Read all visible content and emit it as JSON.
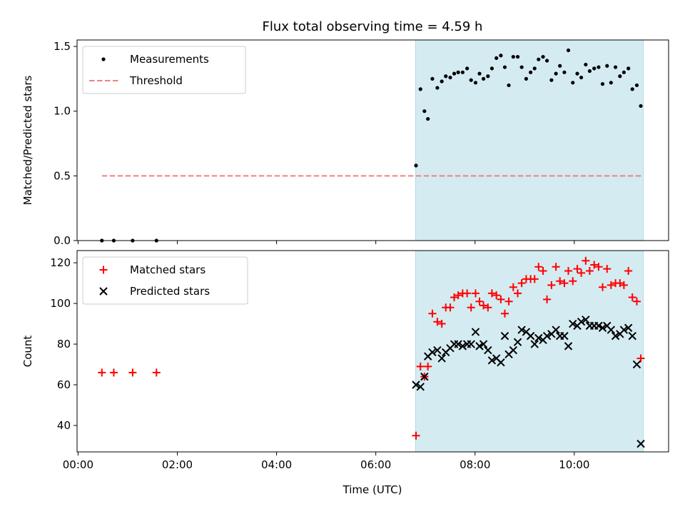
{
  "chart_data": {
    "type": "scatter",
    "title": "Flux total observing time = 4.59 h",
    "xlabel": "Time (UTC)",
    "x_tick_labels": [
      "00:00",
      "02:00",
      "04:00",
      "06:00",
      "08:00",
      "10:00"
    ],
    "x_ticks_hours": [
      0,
      2,
      4,
      6,
      8,
      10
    ],
    "xlim_hours": [
      -0.02,
      11.9
    ],
    "shaded_span_hours": [
      6.8,
      11.39
    ],
    "shade_color": "#d4ebf1",
    "panels": [
      {
        "ylabel": "Matched/Predicted stars",
        "ylim": [
          0,
          1.55
        ],
        "y_ticks": [
          0.0,
          0.5,
          1.0,
          1.5
        ],
        "y_tick_labels": [
          "0.0",
          "0.5",
          "1.0",
          "1.5"
        ],
        "legend_position": "upper-left",
        "series": [
          {
            "name": "Measurements",
            "marker": "dot",
            "color": "#000000",
            "x_hours": [
              0.48,
              0.72,
              1.1,
              1.58,
              6.81,
              6.9,
              6.98,
              7.05,
              7.14,
              7.24,
              7.33,
              7.41,
              7.5,
              7.58,
              7.66,
              7.75,
              7.84,
              7.92,
              8.01,
              8.09,
              8.17,
              8.26,
              8.34,
              8.43,
              8.52,
              8.6,
              8.68,
              8.77,
              8.86,
              8.94,
              9.03,
              9.12,
              9.2,
              9.28,
              9.37,
              9.45,
              9.54,
              9.63,
              9.71,
              9.8,
              9.88,
              9.97,
              10.06,
              10.14,
              10.23,
              10.31,
              10.4,
              10.49,
              10.57,
              10.66,
              10.74,
              10.83,
              10.92,
              11.0,
              11.09,
              11.17,
              11.26,
              11.34
            ],
            "y_values": [
              0.0,
              0.0,
              0.0,
              0.0,
              0.58,
              1.17,
              1.0,
              0.94,
              1.25,
              1.18,
              1.23,
              1.27,
              1.26,
              1.29,
              1.3,
              1.3,
              1.33,
              1.24,
              1.22,
              1.29,
              1.25,
              1.27,
              1.33,
              1.41,
              1.43,
              1.34,
              1.2,
              1.42,
              1.42,
              1.34,
              1.25,
              1.3,
              1.33,
              1.4,
              1.42,
              1.39,
              1.24,
              1.29,
              1.35,
              1.3,
              1.47,
              1.22,
              1.29,
              1.26,
              1.36,
              1.31,
              1.33,
              1.34,
              1.21,
              1.35,
              1.22,
              1.34,
              1.27,
              1.3,
              1.33,
              1.17,
              1.2,
              1.04
            ]
          },
          {
            "name": "Threshold",
            "marker": "dashed-line",
            "color": "#f08080",
            "x_hours": [
              0.48,
              11.39
            ],
            "y_values": [
              0.5,
              0.5
            ]
          }
        ]
      },
      {
        "ylabel": "Count",
        "ylim": [
          27,
          126
        ],
        "y_ticks": [
          40,
          60,
          80,
          100,
          120
        ],
        "y_tick_labels": [
          "40",
          "60",
          "80",
          "100",
          "120"
        ],
        "legend_position": "upper-left",
        "series": [
          {
            "name": "Matched stars",
            "marker": "plus",
            "color": "#ff0000",
            "x_hours": [
              0.48,
              0.72,
              1.1,
              1.58,
              6.81,
              6.9,
              6.98,
              7.05,
              7.14,
              7.24,
              7.33,
              7.41,
              7.5,
              7.58,
              7.66,
              7.75,
              7.84,
              7.92,
              8.01,
              8.09,
              8.17,
              8.26,
              8.34,
              8.43,
              8.52,
              8.6,
              8.68,
              8.77,
              8.86,
              8.94,
              9.03,
              9.12,
              9.2,
              9.28,
              9.37,
              9.45,
              9.54,
              9.63,
              9.71,
              9.8,
              9.88,
              9.97,
              10.06,
              10.14,
              10.23,
              10.31,
              10.4,
              10.49,
              10.57,
              10.66,
              10.74,
              10.83,
              10.92,
              11.0,
              11.09,
              11.17,
              11.26,
              11.34
            ],
            "y_values": [
              66,
              66,
              66,
              66,
              35,
              69,
              64,
              69,
              95,
              91,
              90,
              98,
              98,
              103,
              104,
              105,
              105,
              98,
              105,
              101,
              99,
              98,
              105,
              104,
              102,
              95,
              101,
              108,
              105,
              110,
              112,
              112,
              112,
              118,
              116,
              102,
              109,
              118,
              111,
              110,
              116,
              111,
              117,
              115,
              121,
              116,
              119,
              118,
              108,
              117,
              109,
              110,
              110,
              109,
              116,
              103,
              101,
              73
            ]
          },
          {
            "name": "Predicted stars",
            "marker": "cross",
            "color": "#000000",
            "x_hours": [
              6.81,
              6.9,
              6.98,
              7.05,
              7.14,
              7.24,
              7.33,
              7.41,
              7.5,
              7.58,
              7.66,
              7.75,
              7.84,
              7.92,
              8.01,
              8.09,
              8.17,
              8.26,
              8.34,
              8.43,
              8.52,
              8.6,
              8.68,
              8.77,
              8.86,
              8.94,
              9.03,
              9.12,
              9.2,
              9.28,
              9.37,
              9.45,
              9.54,
              9.63,
              9.71,
              9.8,
              9.88,
              9.97,
              10.06,
              10.14,
              10.23,
              10.31,
              10.4,
              10.49,
              10.57,
              10.66,
              10.74,
              10.83,
              10.92,
              11.0,
              11.09,
              11.17,
              11.26,
              11.34
            ],
            "y_values": [
              60,
              59,
              64,
              74,
              76,
              77,
              73,
              76,
              78,
              80,
              80,
              79,
              80,
              80,
              86,
              79,
              80,
              77,
              72,
              73,
              71,
              84,
              75,
              77,
              81,
              87,
              86,
              84,
              80,
              83,
              82,
              84,
              85,
              87,
              84,
              84,
              79,
              90,
              89,
              91,
              92,
              89,
              89,
              89,
              88,
              89,
              87,
              84,
              85,
              87,
              88,
              84,
              70,
              31
            ]
          }
        ]
      }
    ]
  }
}
